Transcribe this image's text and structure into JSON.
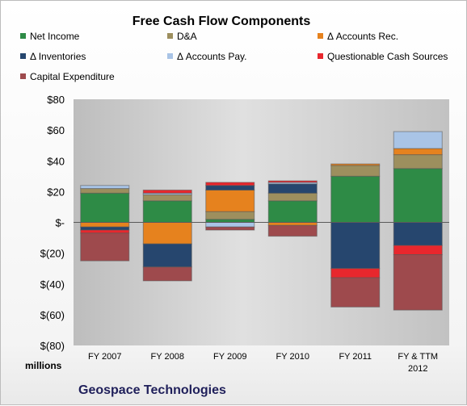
{
  "chart_data": {
    "type": "bar",
    "stacked": true,
    "title": "Free Cash Flow Components",
    "ylabel": "millions",
    "company": "Geospace Technologies",
    "ylim": [
      -80,
      80
    ],
    "yticks": [
      80,
      60,
      40,
      20,
      0,
      -20,
      -40,
      -60,
      -80
    ],
    "ytick_labels": [
      "$80",
      "$60",
      "$40",
      "$20",
      "$-",
      "$(20)",
      "$(40)",
      "$(60)",
      "$(80)"
    ],
    "categories": [
      [
        "FY 2007"
      ],
      [
        "FY 2008"
      ],
      [
        "FY 2009"
      ],
      [
        "FY 2010"
      ],
      [
        "FY 2011"
      ],
      [
        "FY & TTM",
        "2012"
      ]
    ],
    "legend_position": "top",
    "grid": false,
    "series": [
      {
        "name": "Net Income",
        "color": "#2e8b46",
        "values": [
          19,
          14,
          2,
          14,
          30,
          35
        ]
      },
      {
        "name": "D&A",
        "color": "#9d8f5e",
        "values": [
          3,
          4,
          5,
          5,
          7,
          9
        ]
      },
      {
        "name": "Δ Accounts Rec.",
        "color": "#e6821e",
        "values": [
          -3,
          -14,
          14,
          -2,
          1,
          4
        ]
      },
      {
        "name": "Δ Inventories",
        "color": "#26466e",
        "values": [
          -2,
          -15,
          3,
          6,
          -30,
          -15
        ]
      },
      {
        "name": "Δ Accounts Pay.",
        "color": "#a9c4e6",
        "values": [
          2,
          1,
          -3,
          1,
          0,
          11
        ]
      },
      {
        "name": "Questionable Cash Sources",
        "color": "#e8272d",
        "values": [
          -2,
          2,
          2,
          1,
          -6,
          -6
        ]
      },
      {
        "name": "Capital Expenditure",
        "color": "#9e4a4d",
        "values": [
          -18,
          -9,
          -2,
          -7,
          -19,
          -36
        ]
      }
    ]
  }
}
